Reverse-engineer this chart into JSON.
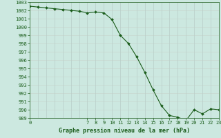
{
  "x": [
    0,
    1,
    2,
    3,
    4,
    5,
    6,
    7,
    8,
    9,
    10,
    11,
    12,
    13,
    14,
    15,
    16,
    17,
    18,
    19,
    20,
    21,
    22,
    23
  ],
  "y": [
    1002.5,
    1002.4,
    1002.3,
    1002.2,
    1002.1,
    1002.0,
    1001.9,
    1001.7,
    1001.8,
    1001.7,
    1000.9,
    999.0,
    998.0,
    996.4,
    994.5,
    992.4,
    990.5,
    989.3,
    989.1,
    988.7,
    990.0,
    989.5,
    990.1,
    990.0
  ],
  "line_color": "#1a5c1a",
  "marker_color": "#1a5c1a",
  "bg_color": "#cce8e0",
  "grid_color_h": "#c8d8d0",
  "grid_color_v": "#b8cec8",
  "title": "Graphe pression niveau de la mer (hPa)",
  "ylim_min": 989,
  "ylim_max": 1003,
  "xlim_min": 0,
  "xlim_max": 23,
  "yticks": [
    989,
    990,
    991,
    992,
    993,
    994,
    995,
    996,
    997,
    998,
    999,
    1000,
    1001,
    1002,
    1003
  ],
  "xticks": [
    0,
    7,
    8,
    9,
    10,
    11,
    12,
    13,
    14,
    15,
    16,
    17,
    18,
    19,
    20,
    21,
    22,
    23
  ],
  "title_fontsize": 6.0,
  "tick_fontsize": 5.0
}
